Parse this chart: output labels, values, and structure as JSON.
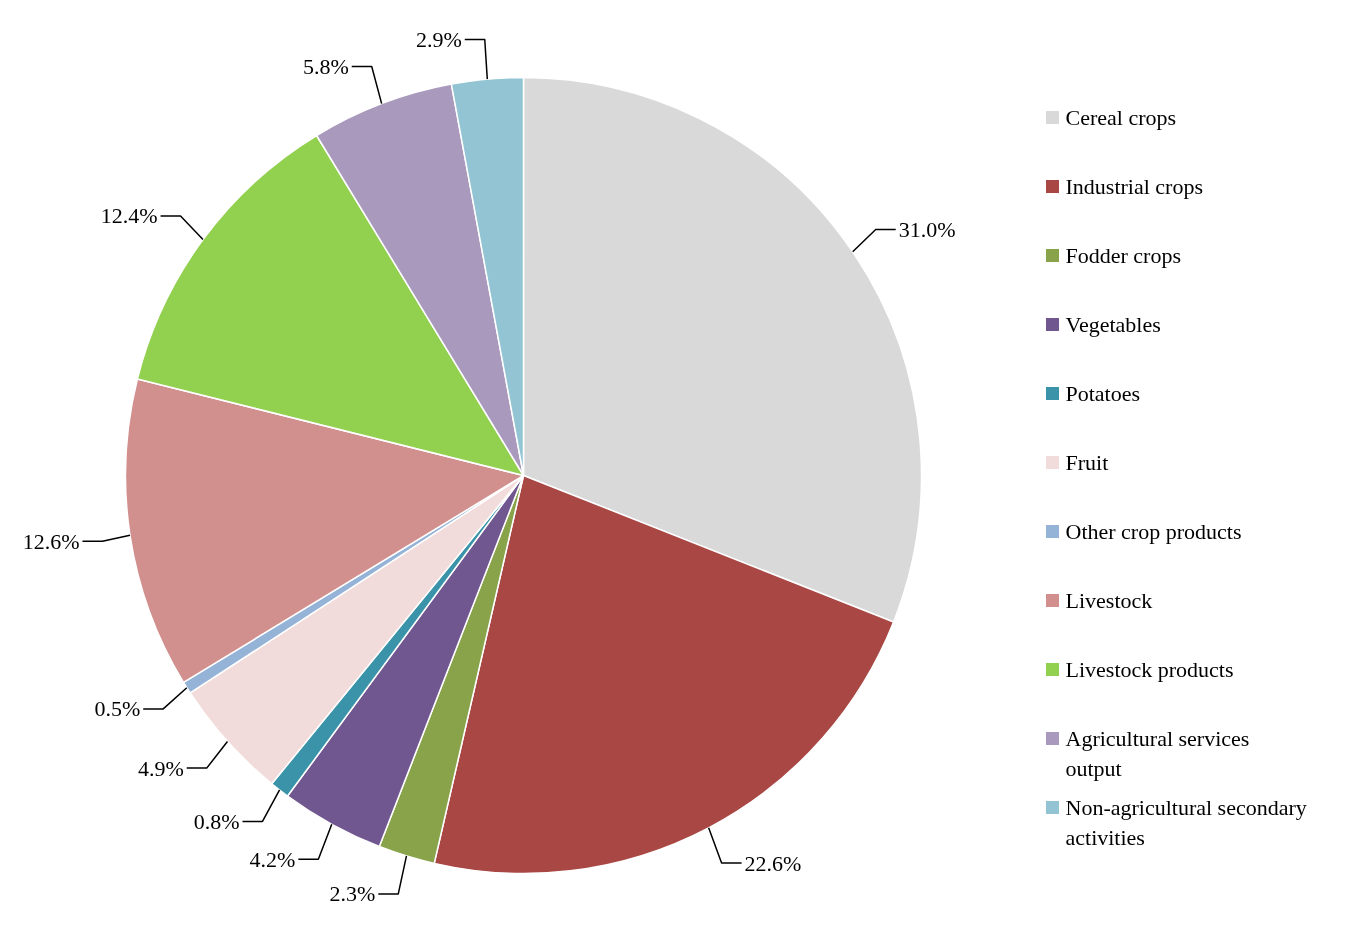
{
  "chart_data": {
    "type": "pie",
    "categories": [
      "Cereal crops",
      "Industrial crops",
      "Fodder crops",
      "Vegetables",
      "Potatoes",
      "Fruit",
      "Other crop products",
      "Livestock",
      "Livestock products",
      "Agricultural services output",
      "Non-agricultural secondary activities"
    ],
    "values": [
      31.0,
      22.6,
      2.3,
      4.2,
      0.8,
      4.9,
      0.5,
      12.6,
      12.4,
      5.8,
      2.9
    ],
    "value_labels": [
      "31.0%",
      "22.6%",
      "2.3%",
      "4.2%",
      "0.8%",
      "4.9%",
      "0.5%",
      "12.6%",
      "12.4%",
      "5.8%",
      "2.9%"
    ],
    "colors": [
      "#d9d9d9",
      "#a94744",
      "#89a34a",
      "#715790",
      "#3a93a8",
      "#f2dcdb",
      "#95b3d7",
      "#d18f8d",
      "#92d050",
      "#a899bd",
      "#93c4d4"
    ],
    "legend": "right"
  }
}
